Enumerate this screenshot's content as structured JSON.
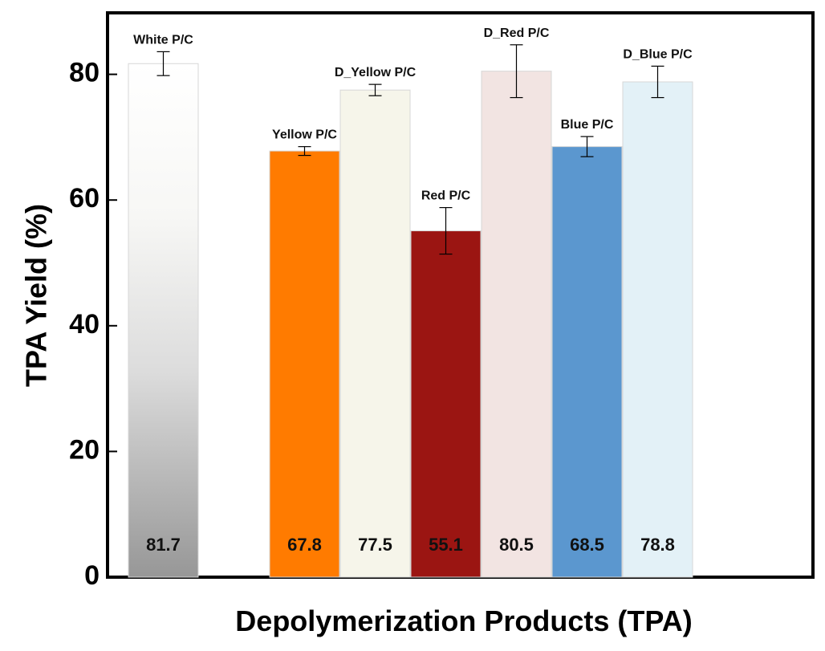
{
  "chart_data": {
    "type": "bar",
    "title": "",
    "xlabel": "Depolymerization Products (TPA)",
    "ylabel": "TPA Yield (%)",
    "ylim": [
      0,
      88
    ],
    "yticks": [
      0,
      20,
      40,
      60,
      80
    ],
    "grid": false,
    "categories": [
      "White P/C",
      "",
      "Yellow P/C",
      "D_Yellow P/C",
      "Red P/C",
      "D_Red P/C",
      "Blue P/C",
      "D_Blue P/C"
    ],
    "bars": [
      {
        "label": "White P/C",
        "value": 81.7,
        "value_label": "81.7",
        "error": 1.9,
        "slot": 0,
        "color_top": "#ffffff",
        "color_bottom": "#9a9a9a"
      },
      {
        "label": "Yellow P/C",
        "value": 67.8,
        "value_label": "67.8",
        "error": 0.7,
        "slot": 2,
        "color_top": "#ff7b00",
        "color_bottom": "#ff7b00"
      },
      {
        "label": "D_Yellow P/C",
        "value": 77.5,
        "value_label": "77.5",
        "error": 0.9,
        "slot": 3,
        "color_top": "#f6f5ea",
        "color_bottom": "#f6f5ea"
      },
      {
        "label": "Red P/C",
        "value": 55.1,
        "value_label": "55.1",
        "error": 3.7,
        "slot": 4,
        "color_top": "#9b1512",
        "color_bottom": "#9b1512"
      },
      {
        "label": "D_Red P/C",
        "value": 80.5,
        "value_label": "80.5",
        "error": 4.2,
        "slot": 5,
        "color_top": "#f2e4e2",
        "color_bottom": "#f2e4e2"
      },
      {
        "label": "Blue P/C",
        "value": 68.5,
        "value_label": "68.5",
        "error": 1.6,
        "slot": 6,
        "color_top": "#5b97cf",
        "color_bottom": "#5b97cf"
      },
      {
        "label": "D_Blue P/C",
        "value": 78.8,
        "value_label": "78.8",
        "error": 2.5,
        "slot": 7,
        "color_top": "#e3f1f7",
        "color_bottom": "#e3f1f7"
      }
    ]
  }
}
